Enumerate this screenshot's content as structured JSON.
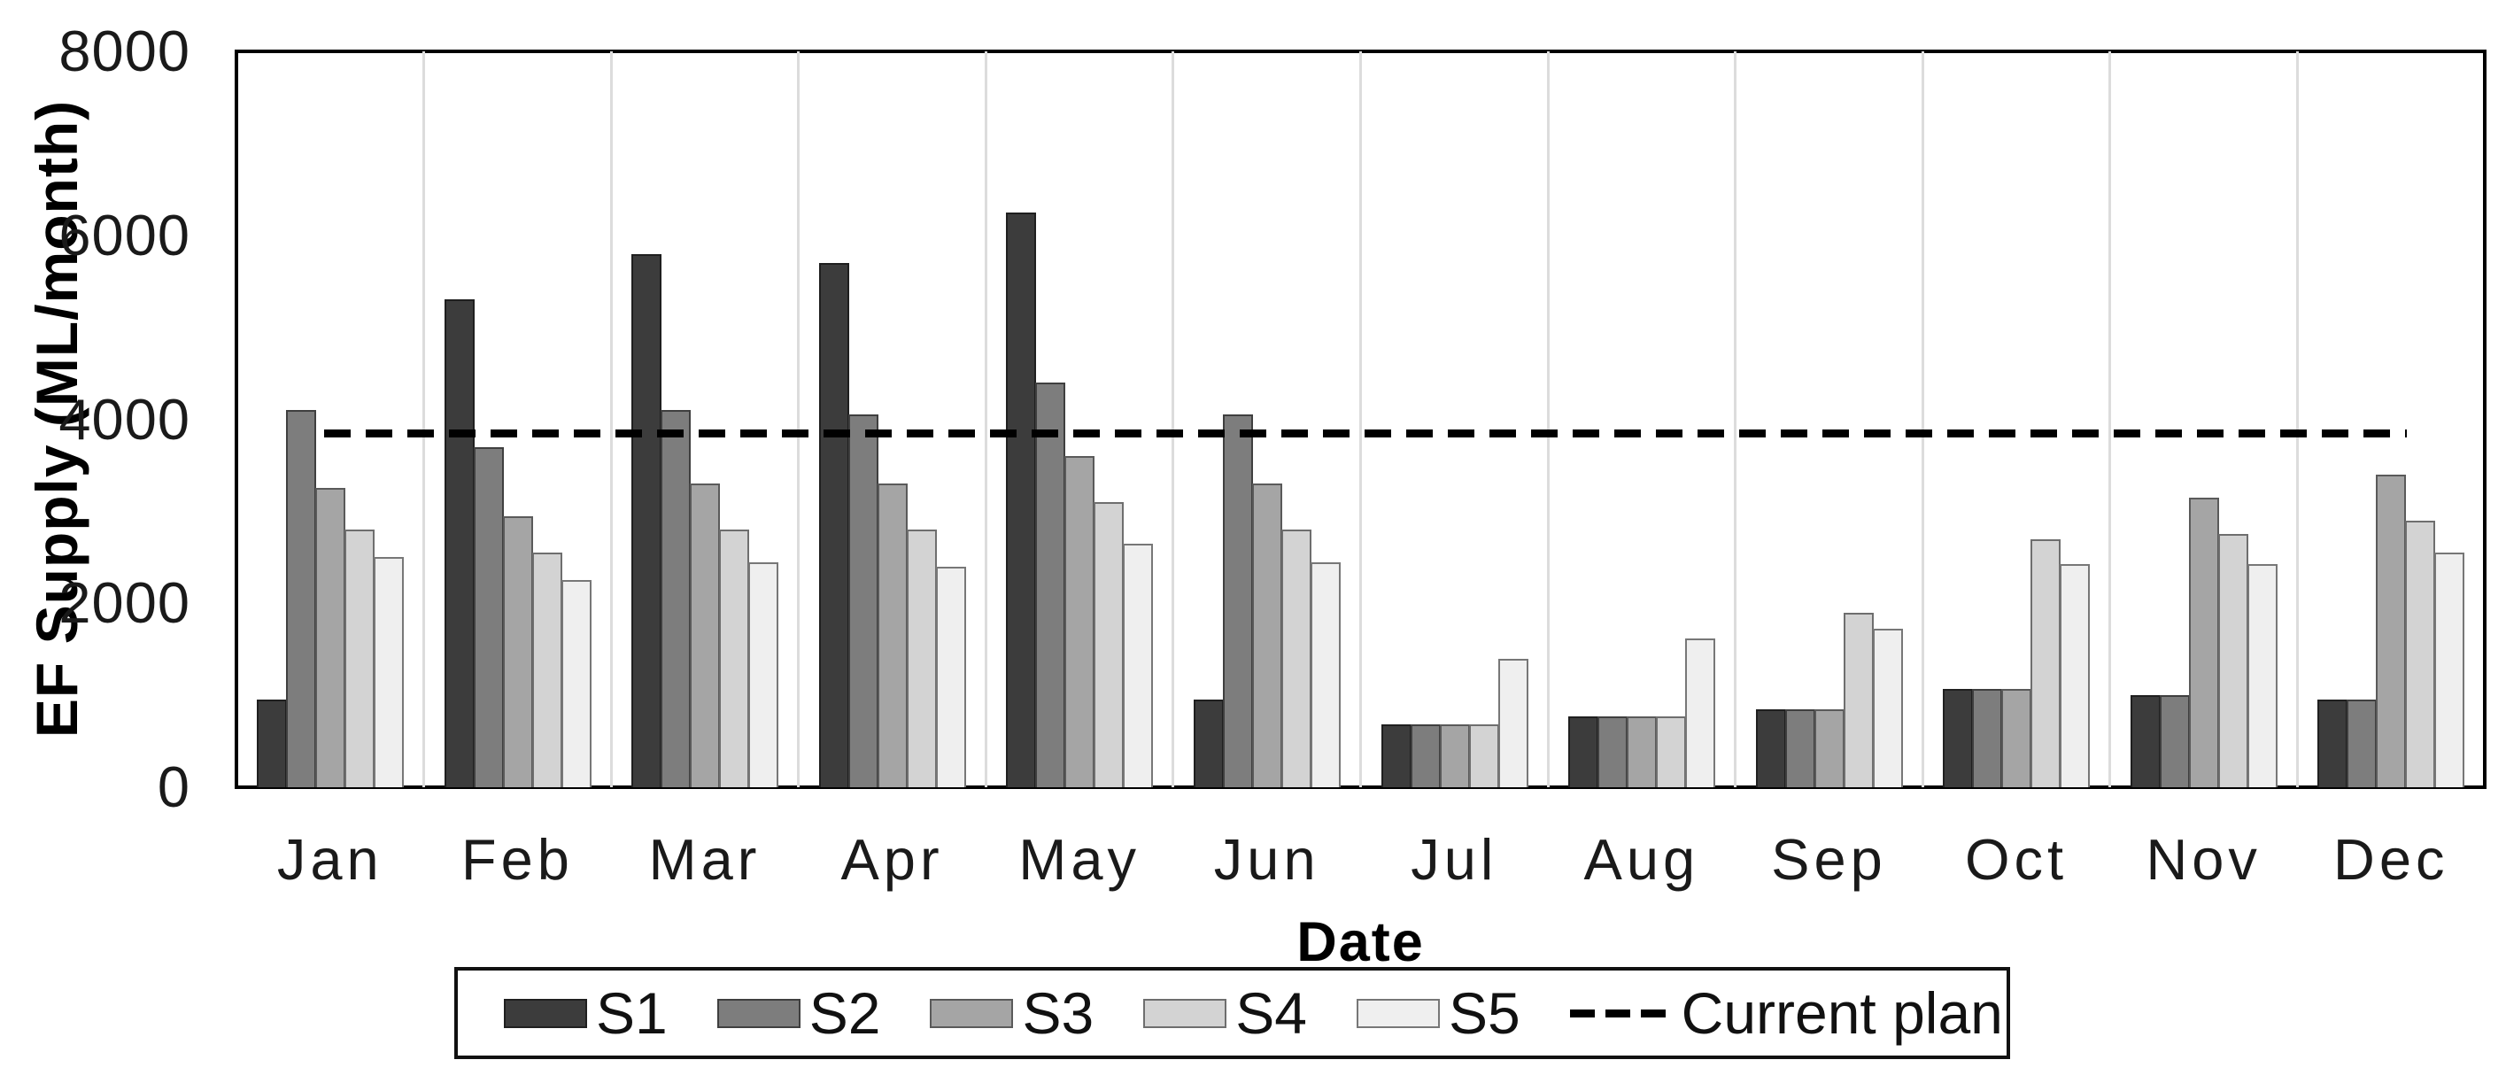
{
  "chart_data": {
    "type": "bar",
    "title": "",
    "xlabel": "Date",
    "ylabel": "EF Supply (ML/month)",
    "ylim": [
      0,
      8000
    ],
    "yticks": [
      0,
      2000,
      4000,
      6000,
      8000
    ],
    "grid": "vertical-light",
    "legend_position": "bottom",
    "categories": [
      "Jan",
      "Feb",
      "Mar",
      "Apr",
      "May",
      "Jun",
      "Jul",
      "Aug",
      "Sep",
      "Oct",
      "Nov",
      "Dec"
    ],
    "series": [
      {
        "name": "S1",
        "color": "#3c3c3c",
        "border": "#1f1f1f",
        "values": [
          950,
          5300,
          5800,
          5700,
          6250,
          950,
          680,
          770,
          850,
          1070,
          1000,
          950
        ]
      },
      {
        "name": "S2",
        "color": "#7d7d7d",
        "border": "#3f3f3f",
        "values": [
          4100,
          3700,
          4100,
          4050,
          4400,
          4050,
          680,
          770,
          850,
          1070,
          1000,
          950
        ]
      },
      {
        "name": "S3",
        "color": "#a5a5a5",
        "border": "#5a5a5a",
        "values": [
          3250,
          2950,
          3300,
          3300,
          3600,
          3300,
          680,
          770,
          850,
          1070,
          3150,
          3400
        ]
      },
      {
        "name": "S4",
        "color": "#d3d3d3",
        "border": "#6e6e6e",
        "values": [
          2800,
          2550,
          2800,
          2800,
          3100,
          2800,
          680,
          770,
          1900,
          2700,
          2750,
          2900
        ]
      },
      {
        "name": "S5",
        "color": "#efefef",
        "border": "#777777",
        "values": [
          2500,
          2250,
          2450,
          2400,
          2650,
          2450,
          1400,
          1620,
          1720,
          2430,
          2430,
          2550
        ]
      }
    ],
    "reference_line": {
      "label": "Current plan",
      "value": 3850,
      "style": "dashed",
      "color": "#000000"
    }
  },
  "colors": {
    "background": "#ffffff",
    "axis": "#000000",
    "gridline": "#dcdcdc",
    "tick_text": "#1a1a1a"
  }
}
